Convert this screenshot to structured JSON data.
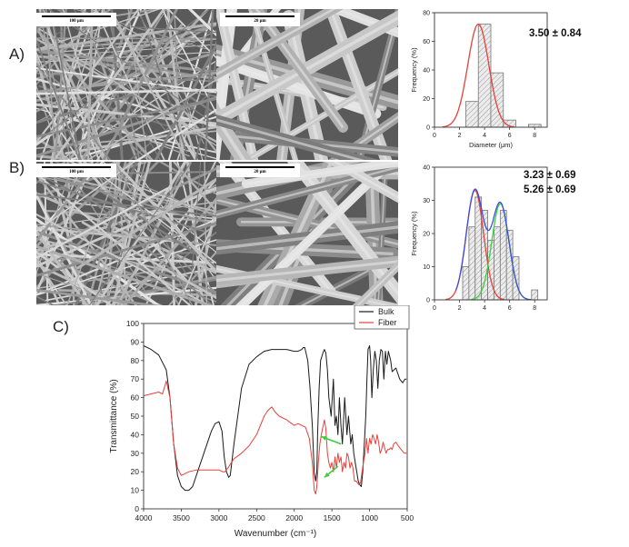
{
  "panels": {
    "a_label": "A)",
    "b_label": "B)",
    "c_label": "C)"
  },
  "sem": {
    "scale_100": "100 μm",
    "scale_20": "20 μm"
  },
  "chart_data": [
    {
      "id": "A",
      "type": "bar",
      "annotation": "3.50 ± 0.84",
      "xlabel": "Diameter (μm)",
      "ylabel": "Frequency (%)",
      "xlim": [
        0,
        9
      ],
      "ylim": [
        0,
        80
      ],
      "xticks": [
        0,
        2,
        4,
        6,
        8
      ],
      "yticks": [
        0,
        20,
        40,
        60,
        80
      ],
      "bin_width": 1,
      "bins": [
        1,
        2,
        3,
        4,
        5,
        6,
        7,
        8
      ],
      "values": [
        0,
        0,
        18,
        72,
        38,
        5,
        0,
        2
      ],
      "fits": [
        {
          "color": "#e8403a",
          "mu": 3.5,
          "sigma": 0.84,
          "peak": 72
        }
      ]
    },
    {
      "id": "B",
      "type": "bar",
      "annotation": [
        "3.23 ± 0.69",
        "5.26 ± 0.69"
      ],
      "xlabel": "Diameter (μm)",
      "ylabel": "Frequency (%)",
      "xlim": [
        0,
        9
      ],
      "ylim": [
        0,
        40
      ],
      "xticks": [
        0,
        2,
        4,
        6,
        8
      ],
      "yticks": [
        0,
        10,
        20,
        30,
        40
      ],
      "bin_width": 0.5,
      "bins": [
        2.5,
        3.0,
        3.5,
        4.0,
        4.5,
        5.0,
        5.5,
        6.0,
        6.5,
        7.0,
        7.5,
        8.0
      ],
      "values": [
        10,
        22,
        31,
        27,
        18,
        22,
        27,
        21,
        13,
        0,
        0,
        3
      ],
      "fits": [
        {
          "color": "#e8403a",
          "mu": 3.23,
          "sigma": 0.69,
          "peak": 33
        },
        {
          "color": "#3ccf3c",
          "mu": 5.26,
          "sigma": 0.69,
          "peak": 29
        },
        {
          "color": "#3b4fd8",
          "type": "sum"
        }
      ]
    },
    {
      "id": "C",
      "type": "line",
      "xlabel": "Wavenumber (cm⁻¹)",
      "ylabel": "Transmittance (%)",
      "xlim": [
        4000,
        500
      ],
      "ylim": [
        0,
        100
      ],
      "xticks": [
        4000,
        3500,
        3000,
        2500,
        2000,
        1500,
        1000,
        500
      ],
      "yticks": [
        0,
        10,
        20,
        30,
        40,
        50,
        60,
        70,
        80,
        90,
        100
      ],
      "legend": "top-right",
      "series": [
        {
          "name": "Bulk",
          "color": "#1a1a1a",
          "x": [
            4000,
            3900,
            3800,
            3700,
            3650,
            3600,
            3550,
            3500,
            3450,
            3400,
            3350,
            3300,
            3200,
            3100,
            3050,
            3000,
            2960,
            2930,
            2900,
            2870,
            2850,
            2800,
            2700,
            2600,
            2500,
            2400,
            2300,
            2200,
            2100,
            2000,
            1950,
            1900,
            1880,
            1860,
            1820,
            1790,
            1760,
            1735,
            1715,
            1700,
            1690,
            1670,
            1650,
            1620,
            1600,
            1580,
            1560,
            1540,
            1510,
            1480,
            1460,
            1440,
            1420,
            1400,
            1380,
            1360,
            1330,
            1300,
            1280,
            1250,
            1230,
            1210,
            1190,
            1170,
            1150,
            1130,
            1110,
            1090,
            1070,
            1050,
            1035,
            1020,
            1000,
            985,
            970,
            950,
            930,
            910,
            890,
            870,
            850,
            830,
            810,
            790,
            770,
            750,
            720,
            700,
            650,
            600,
            560,
            530,
            510
          ],
          "y": [
            88,
            86,
            83,
            75,
            60,
            35,
            18,
            12,
            10,
            10,
            12,
            18,
            30,
            42,
            46,
            47,
            42,
            28,
            20,
            17,
            18,
            35,
            65,
            78,
            82,
            85,
            86,
            86,
            86,
            85,
            85,
            86,
            87,
            87,
            80,
            65,
            45,
            20,
            15,
            20,
            40,
            65,
            80,
            84,
            86,
            84,
            75,
            60,
            50,
            70,
            45,
            50,
            40,
            60,
            45,
            35,
            60,
            40,
            50,
            35,
            40,
            30,
            25,
            20,
            15,
            13,
            12,
            20,
            35,
            50,
            70,
            86,
            88,
            80,
            60,
            75,
            85,
            80,
            65,
            80,
            86,
            85,
            70,
            85,
            78,
            85,
            80,
            74,
            76,
            70,
            68,
            70,
            70
          ]
        },
        {
          "name": "Fiber",
          "color": "#e8403a",
          "x": [
            4000,
            3900,
            3800,
            3750,
            3720,
            3700,
            3650,
            3600,
            3550,
            3500,
            3450,
            3400,
            3300,
            3200,
            3100,
            3000,
            2950,
            2920,
            2880,
            2850,
            2800,
            2700,
            2600,
            2500,
            2400,
            2350,
            2300,
            2250,
            2200,
            2100,
            2000,
            1950,
            1900,
            1850,
            1800,
            1760,
            1735,
            1715,
            1700,
            1680,
            1660,
            1640,
            1620,
            1600,
            1580,
            1560,
            1540,
            1520,
            1500,
            1480,
            1460,
            1440,
            1420,
            1400,
            1380,
            1360,
            1340,
            1320,
            1300,
            1280,
            1260,
            1240,
            1220,
            1200,
            1180,
            1160,
            1140,
            1120,
            1100,
            1080,
            1060,
            1040,
            1020,
            1000,
            980,
            960,
            940,
            920,
            900,
            880,
            860,
            840,
            820,
            800,
            780,
            760,
            740,
            720,
            700,
            680,
            650,
            620,
            600,
            580,
            560,
            540,
            520,
            510
          ],
          "y": [
            61,
            62,
            63,
            62,
            66,
            69,
            60,
            35,
            22,
            18,
            19,
            20,
            21,
            21,
            21,
            21,
            20,
            20,
            22,
            24,
            27,
            30,
            34,
            40,
            50,
            53,
            55,
            52,
            50,
            48,
            45,
            46,
            45,
            44,
            38,
            25,
            10,
            8,
            12,
            25,
            35,
            40,
            44,
            48,
            43,
            30,
            25,
            22,
            25,
            20,
            28,
            22,
            30,
            25,
            28,
            20,
            25,
            22,
            30,
            28,
            22,
            25,
            22,
            15,
            15,
            14,
            13,
            14,
            20,
            25,
            30,
            38,
            30,
            38,
            35,
            40,
            38,
            35,
            40,
            36,
            30,
            32,
            36,
            33,
            30,
            32,
            32,
            33,
            32,
            35,
            36,
            34,
            33,
            32,
            31,
            30,
            30,
            30
          ]
        }
      ]
    }
  ]
}
